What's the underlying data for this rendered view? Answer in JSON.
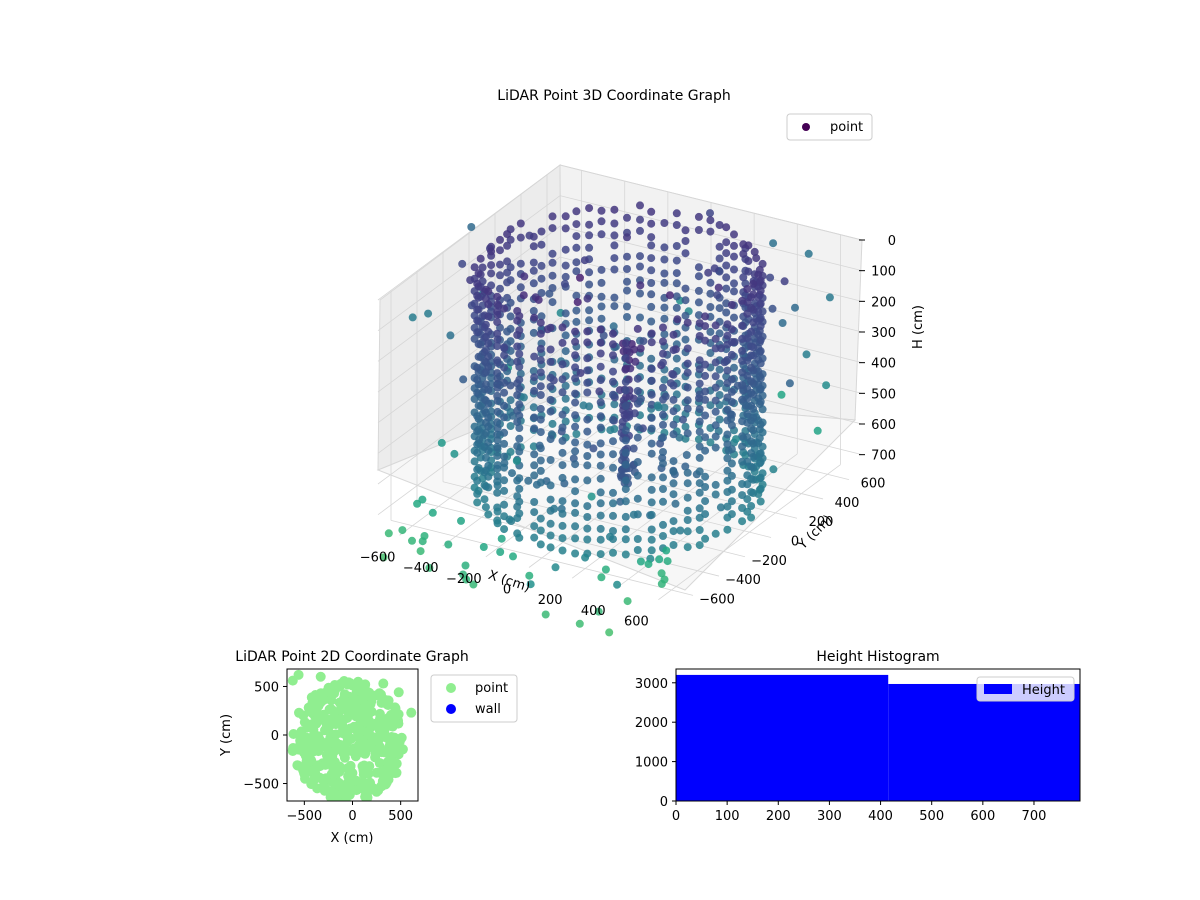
{
  "chart_data": [
    {
      "type": "scatter",
      "projection": "3d",
      "title": "LiDAR Point 3D Coordinate Graph",
      "xlabel": "X (cm)",
      "ylabel": "Y (cm)",
      "zlabel": "H (cm)",
      "xticks": [
        "−600",
        "−400",
        "−200",
        "0",
        "200",
        "400",
        "600"
      ],
      "yticks": [
        "−600",
        "−400",
        "−200",
        "0",
        "200",
        "400",
        "600"
      ],
      "zticks": [
        "0",
        "100",
        "200",
        "300",
        "400",
        "500",
        "600",
        "700"
      ],
      "xlim": [
        -700,
        700
      ],
      "ylim": [
        -700,
        700
      ],
      "zlim": [
        0,
        750
      ],
      "z_inverted": true,
      "colormap": "viridis",
      "grid": true,
      "legend": {
        "placement": "upper-right",
        "entries": [
          {
            "label": "point",
            "color": "#440154"
          }
        ]
      },
      "structures": {
        "wall": {
          "shape": "ring",
          "radius_approx": 560,
          "h_range": [
            0,
            720
          ]
        },
        "central_spire": {
          "x": 0,
          "y": 50,
          "h_range": [
            250,
            720
          ]
        },
        "outer_scatter_description_hidden": true
      }
    },
    {
      "type": "scatter",
      "title": "LiDAR Point 2D Coordinate Graph",
      "xlabel": "X (cm)",
      "ylabel": "Y (cm)",
      "xticks": [
        "−500",
        "0",
        "500"
      ],
      "yticks": [
        "−500",
        "0",
        "500"
      ],
      "xlim": [
        -680,
        680
      ],
      "ylim": [
        -680,
        680
      ],
      "grid": false,
      "legend": {
        "placement": "outside-right",
        "entries": [
          {
            "label": "point",
            "color": "#90ee90"
          },
          {
            "label": "wall",
            "color": "#0000ff"
          }
        ]
      }
    },
    {
      "type": "bar",
      "title": "Height Histogram",
      "xticks": [
        "0",
        "100",
        "200",
        "300",
        "400",
        "500",
        "600",
        "700"
      ],
      "yticks": [
        "0",
        "1000",
        "2000",
        "3000"
      ],
      "xlim": [
        0,
        790
      ],
      "ylim": [
        0,
        3350
      ],
      "bins": [
        {
          "x0": 0,
          "x1": 415,
          "count": 3200
        },
        {
          "x0": 415,
          "x1": 790,
          "count": 2970
        }
      ],
      "color": "#0000ff",
      "legend": {
        "placement": "upper-right",
        "entries": [
          {
            "label": "Height",
            "color": "#0000ff"
          }
        ]
      }
    }
  ]
}
